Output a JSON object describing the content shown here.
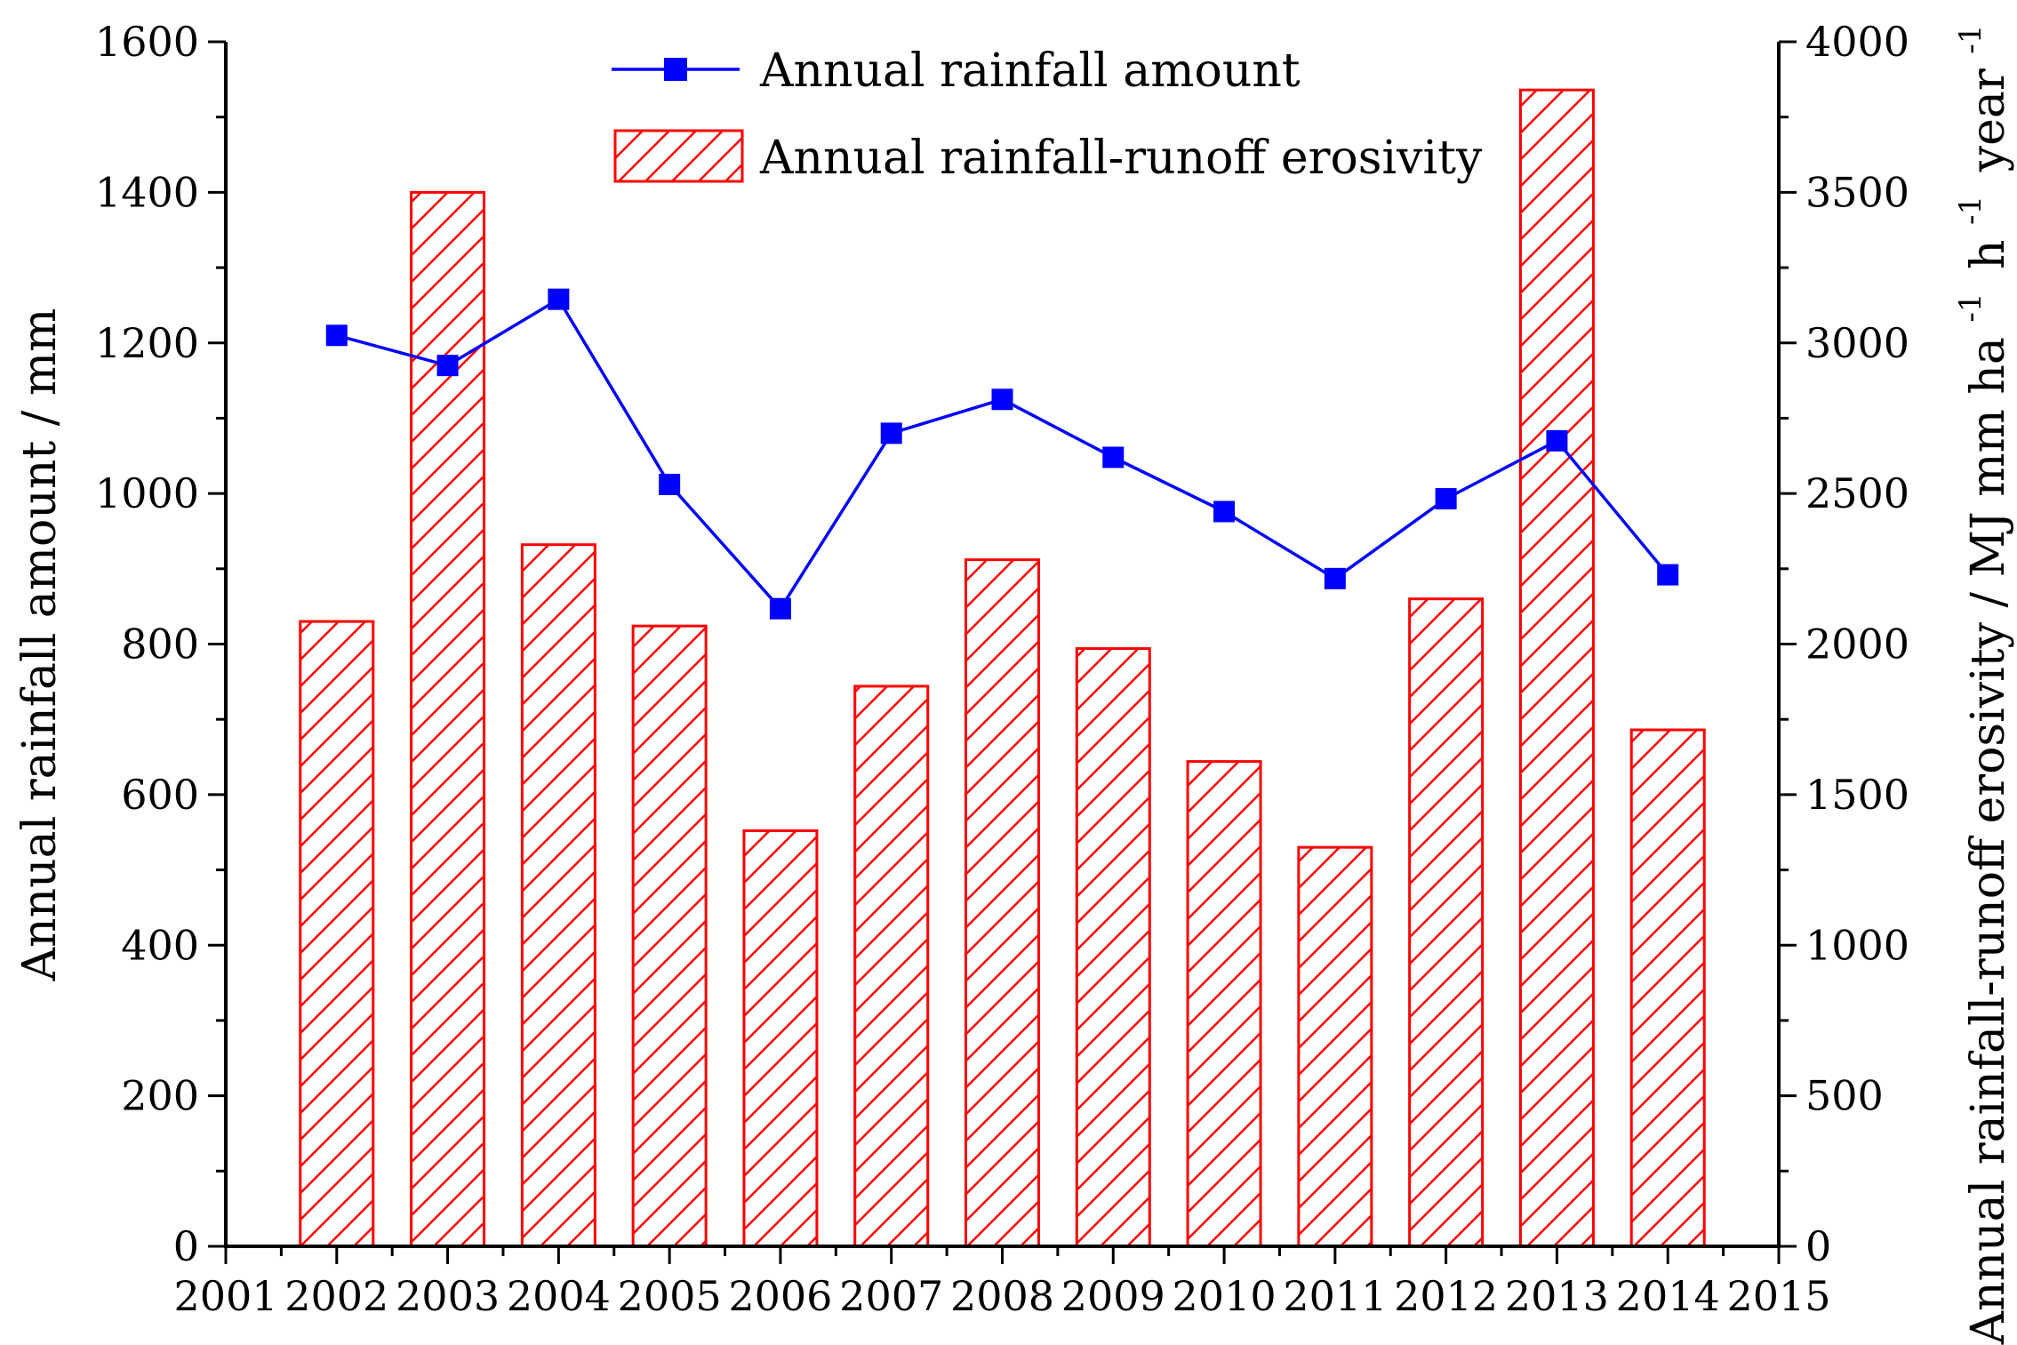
{
  "chart_data": {
    "type": "bar+line",
    "x": [
      2002,
      2003,
      2004,
      2005,
      2006,
      2007,
      2008,
      2009,
      2010,
      2011,
      2012,
      2013,
      2014
    ],
    "x_ticks": [
      "2001",
      "2002",
      "2003",
      "2004",
      "2005",
      "2006",
      "2007",
      "2008",
      "2009",
      "2010",
      "2011",
      "2012",
      "2013",
      "2014",
      "2015"
    ],
    "xlim": [
      2001,
      2015
    ],
    "series": [
      {
        "name": "Annual rainfall amount",
        "kind": "line",
        "axis": "left",
        "color": "#0000ff",
        "marker": "square",
        "values": [
          1210,
          1170,
          1258,
          1012,
          847,
          1080,
          1125,
          1048,
          976,
          887,
          993,
          1070,
          892
        ]
      },
      {
        "name": "Annual rainfall-runoff erosivity",
        "kind": "bar",
        "axis": "right",
        "color": "#ff0000",
        "pattern": "diagonal-hatch",
        "values": [
          2075,
          3500,
          2330,
          2060,
          1380,
          1860,
          2280,
          1985,
          1610,
          1325,
          2150,
          3840,
          1715
        ]
      }
    ],
    "left_axis": {
      "title": "Annual rainfall amount / mm",
      "ylim": [
        0,
        1600
      ],
      "ticks": [
        "0",
        "200",
        "400",
        "600",
        "800",
        "1000",
        "1200",
        "1400",
        "1600"
      ]
    },
    "right_axis": {
      "title_main": "Annual rainfall-runoff erosivity / MJ mm ha",
      "title_h": "h",
      "title_year": "year",
      "superscript": "-1",
      "ylim": [
        0,
        4000
      ],
      "ticks": [
        "0",
        "500",
        "1000",
        "1500",
        "2000",
        "2500",
        "3000",
        "3500",
        "4000"
      ]
    },
    "legend": {
      "position": "top-center",
      "entries": [
        "Annual rainfall amount",
        "Annual rainfall-runoff erosivity"
      ]
    }
  }
}
